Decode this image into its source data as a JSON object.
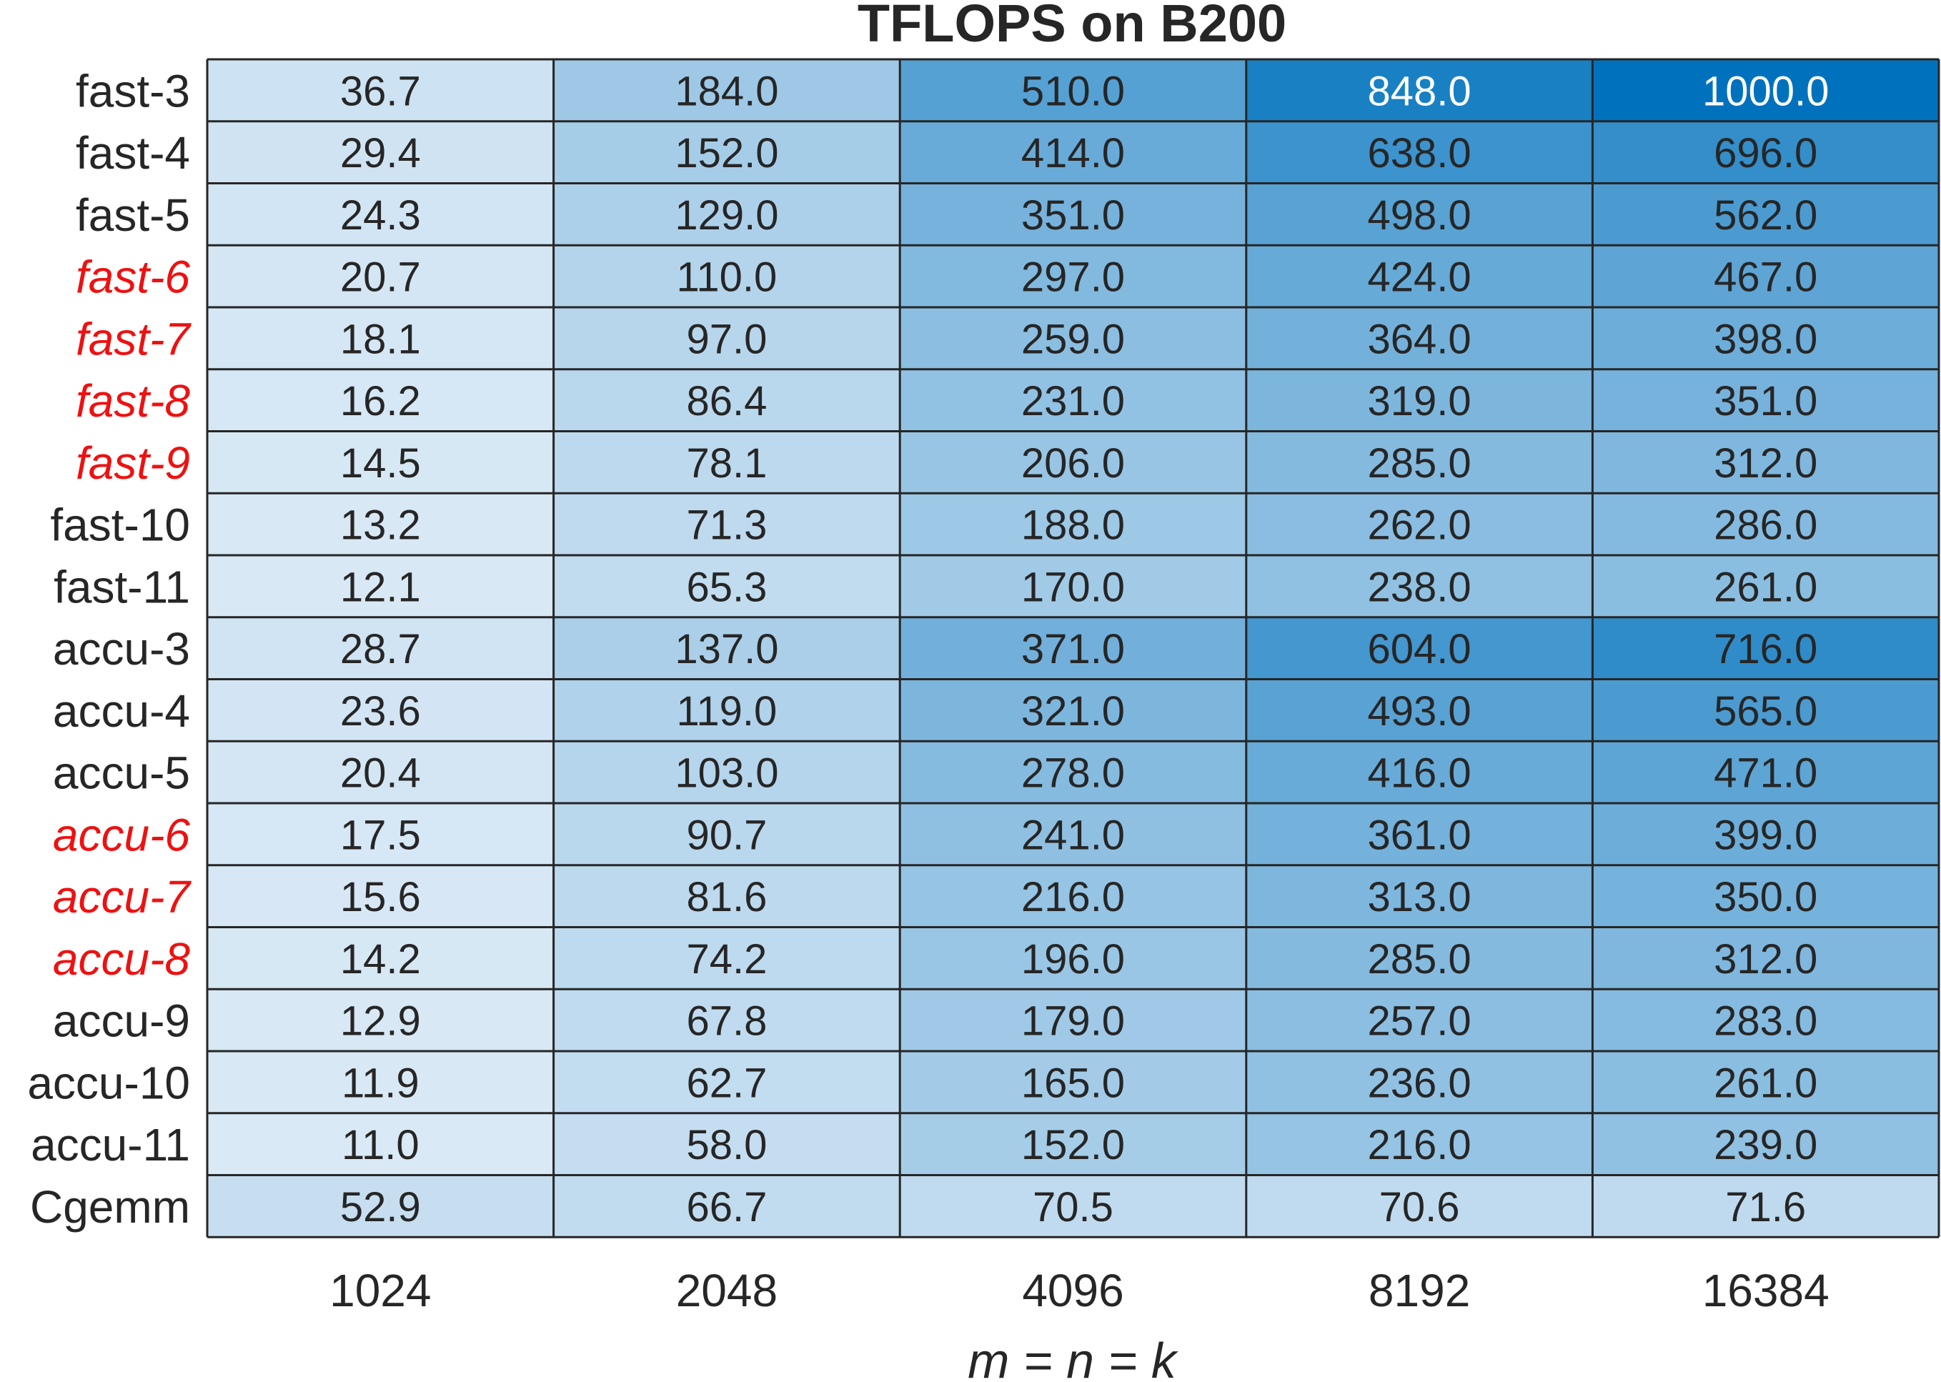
{
  "chart_data": {
    "type": "heatmap",
    "title": "TFLOPS on B200",
    "xlabel": "m = n = k",
    "ylabel": "",
    "x": [
      "1024",
      "2048",
      "4096",
      "8192",
      "16384"
    ],
    "y": [
      "fast-3",
      "fast-4",
      "fast-5",
      "fast-6",
      "fast-7",
      "fast-8",
      "fast-9",
      "fast-10",
      "fast-11",
      "accu-3",
      "accu-4",
      "accu-5",
      "accu-6",
      "accu-7",
      "accu-8",
      "accu-9",
      "accu-10",
      "accu-11",
      "Cgemm"
    ],
    "highlighted_rows": [
      "fast-6",
      "fast-7",
      "fast-8",
      "fast-9",
      "accu-6",
      "accu-7",
      "accu-8"
    ],
    "highlight_color": "#ee1111",
    "label_color": "#262626",
    "values": [
      [
        36.7,
        184.0,
        510.0,
        848.0,
        1000.0
      ],
      [
        29.4,
        152.0,
        414.0,
        638.0,
        696.0
      ],
      [
        24.3,
        129.0,
        351.0,
        498.0,
        562.0
      ],
      [
        20.7,
        110.0,
        297.0,
        424.0,
        467.0
      ],
      [
        18.1,
        97.0,
        259.0,
        364.0,
        398.0
      ],
      [
        16.2,
        86.4,
        231.0,
        319.0,
        351.0
      ],
      [
        14.5,
        78.1,
        206.0,
        285.0,
        312.0
      ],
      [
        13.2,
        71.3,
        188.0,
        262.0,
        286.0
      ],
      [
        12.1,
        65.3,
        170.0,
        238.0,
        261.0
      ],
      [
        28.7,
        137.0,
        371.0,
        604.0,
        716.0
      ],
      [
        23.6,
        119.0,
        321.0,
        493.0,
        565.0
      ],
      [
        20.4,
        103.0,
        278.0,
        416.0,
        471.0
      ],
      [
        17.5,
        90.7,
        241.0,
        361.0,
        399.0
      ],
      [
        15.6,
        81.6,
        216.0,
        313.0,
        350.0
      ],
      [
        14.2,
        74.2,
        196.0,
        285.0,
        312.0
      ],
      [
        12.9,
        67.8,
        179.0,
        257.0,
        283.0
      ],
      [
        11.9,
        62.7,
        165.0,
        236.0,
        261.0
      ],
      [
        11.0,
        58.0,
        152.0,
        216.0,
        239.0
      ],
      [
        52.9,
        66.7,
        70.5,
        70.6,
        71.6
      ]
    ],
    "value_format": "one decimal",
    "colormap": {
      "low": "#e3eef8",
      "high": "#0072bd",
      "text_dark": "#262626",
      "text_light": "#ffffff"
    },
    "grid": true,
    "legend": "none"
  }
}
